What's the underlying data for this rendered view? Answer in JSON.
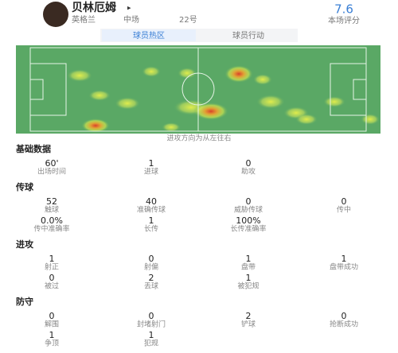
{
  "header": {
    "name": "贝林厄姆",
    "team": "英格兰",
    "position": "中场",
    "number": "22号",
    "rating": "7.6",
    "rating_label": "本场评分"
  },
  "tabs": [
    "球员热区",
    "球员行动"
  ],
  "heatmap_caption": "进攻方向为从左往右",
  "sections": [
    {
      "title": "基础数据",
      "stats": [
        {
          "value": "60'",
          "label": "出场时间"
        },
        {
          "value": "1",
          "label": "进球"
        },
        {
          "value": "0",
          "label": "助攻"
        }
      ]
    },
    {
      "title": "传球",
      "stats": [
        {
          "value": "52",
          "label": "触球"
        },
        {
          "value": "40",
          "label": "准确传球"
        },
        {
          "value": "0",
          "label": "威胁传球"
        },
        {
          "value": "0",
          "label": "传中"
        },
        {
          "value": "0.0%",
          "label": "传中准确率"
        },
        {
          "value": "1",
          "label": "长传"
        },
        {
          "value": "100%",
          "label": "长传准确率"
        }
      ]
    },
    {
      "title": "进攻",
      "stats": [
        {
          "value": "1",
          "label": "射正"
        },
        {
          "value": "0",
          "label": "射偏"
        },
        {
          "value": "1",
          "label": "盘带"
        },
        {
          "value": "1",
          "label": "盘带成功"
        },
        {
          "value": "0",
          "label": "被过"
        },
        {
          "value": "2",
          "label": "丢球"
        },
        {
          "value": "1",
          "label": "被犯规"
        }
      ]
    },
    {
      "title": "防守",
      "stats": [
        {
          "value": "0",
          "label": "解围"
        },
        {
          "value": "0",
          "label": "封堵射门"
        },
        {
          "value": "2",
          "label": "铲球"
        },
        {
          "value": "0",
          "label": "抢断成功"
        },
        {
          "value": "1",
          "label": "争顶"
        },
        {
          "value": "1",
          "label": "犯规"
        }
      ]
    }
  ]
}
